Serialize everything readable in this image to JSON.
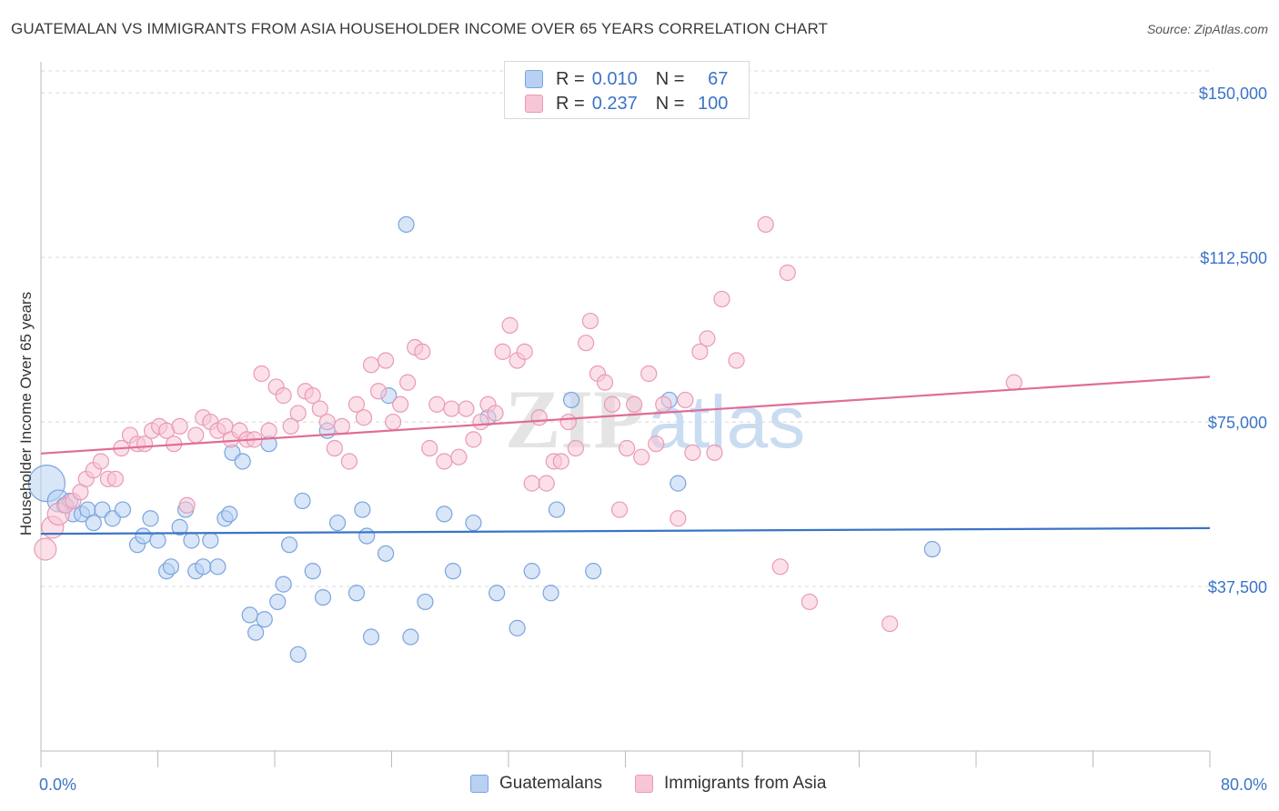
{
  "title": "GUATEMALAN VS IMMIGRANTS FROM ASIA HOUSEHOLDER INCOME OVER 65 YEARS CORRELATION CHART",
  "source": "Source: ZipAtlas.com",
  "watermark": {
    "part1": "ZIP",
    "part2": "atlas"
  },
  "colors": {
    "blue": "#3b74c7",
    "blue_fill": "#b8d1f2",
    "blue_stroke": "#7ba4de",
    "pink": "#e06d96",
    "pink_fill": "#f7c6d6",
    "pink_stroke": "#e99ab5",
    "grid": "#d8d8d8",
    "tick_label": "#3b74c7"
  },
  "legend": {
    "rows": [
      {
        "r_label": "R =",
        "r_value": "0.010",
        "n_label": "N =",
        "n_value": "67"
      },
      {
        "r_label": "R =",
        "r_value": "0.237",
        "n_label": "N =",
        "n_value": "100"
      }
    ]
  },
  "bottom_legend": [
    "Guatemalans",
    "Immigrants from Asia"
  ],
  "chart_data": {
    "type": "scatter",
    "title": "GUATEMALAN VS IMMIGRANTS FROM ASIA HOUSEHOLDER INCOME OVER 65 YEARS CORRELATION CHART",
    "ylabel": "Householder Income Over 65 years",
    "xlabel": "",
    "xlim": [
      0,
      80
    ],
    "ylim": [
      0,
      155000
    ],
    "x_tick_labels": [
      "0.0%",
      "80.0%"
    ],
    "y_ticks": [
      37500,
      75000,
      112500,
      150000
    ],
    "y_tick_labels": [
      "$37,500",
      "$75,000",
      "$112,500",
      "$150,000"
    ],
    "grid": true,
    "legend_position": "top-center",
    "series": [
      {
        "name": "Guatemalans",
        "color": "blue",
        "trend": {
          "x": [
            0,
            80
          ],
          "y": [
            49500,
            50800
          ]
        },
        "points": [
          [
            0.4,
            61000,
            3
          ],
          [
            1.2,
            57000,
            2
          ],
          [
            1.6,
            56000,
            1
          ],
          [
            2.0,
            57000,
            1
          ],
          [
            2.2,
            54000,
            1
          ],
          [
            2.8,
            54000,
            1
          ],
          [
            3.2,
            55000,
            1
          ],
          [
            3.6,
            52000,
            1
          ],
          [
            4.2,
            55000,
            1
          ],
          [
            4.9,
            53000,
            1
          ],
          [
            5.6,
            55000,
            1
          ],
          [
            6.6,
            47000,
            1
          ],
          [
            7.0,
            49000,
            1
          ],
          [
            7.5,
            53000,
            1
          ],
          [
            8.0,
            48000,
            1
          ],
          [
            8.6,
            41000,
            1
          ],
          [
            8.9,
            42000,
            1
          ],
          [
            9.5,
            51000,
            1
          ],
          [
            9.9,
            55000,
            1
          ],
          [
            10.3,
            48000,
            1
          ],
          [
            10.6,
            41000,
            1
          ],
          [
            11.1,
            42000,
            1
          ],
          [
            11.6,
            48000,
            1
          ],
          [
            12.1,
            42000,
            1
          ],
          [
            12.6,
            53000,
            1
          ],
          [
            12.9,
            54000,
            1
          ],
          [
            13.1,
            68000,
            1
          ],
          [
            13.8,
            66000,
            1
          ],
          [
            14.3,
            31000,
            1
          ],
          [
            14.7,
            27000,
            1
          ],
          [
            15.3,
            30000,
            1
          ],
          [
            15.6,
            70000,
            1
          ],
          [
            16.2,
            34000,
            1
          ],
          [
            16.6,
            38000,
            1
          ],
          [
            17.0,
            47000,
            1
          ],
          [
            17.6,
            22000,
            1
          ],
          [
            17.9,
            57000,
            1
          ],
          [
            18.6,
            41000,
            1
          ],
          [
            19.3,
            35000,
            1
          ],
          [
            19.6,
            73000,
            1
          ],
          [
            20.3,
            52000,
            1
          ],
          [
            21.6,
            36000,
            1
          ],
          [
            22.0,
            55000,
            1
          ],
          [
            22.3,
            49000,
            1
          ],
          [
            22.6,
            26000,
            1
          ],
          [
            23.6,
            45000,
            1
          ],
          [
            23.8,
            81000,
            1
          ],
          [
            25.0,
            120000,
            1
          ],
          [
            25.3,
            26000,
            1
          ],
          [
            26.3,
            34000,
            1
          ],
          [
            27.6,
            54000,
            1
          ],
          [
            28.2,
            41000,
            1
          ],
          [
            29.6,
            52000,
            1
          ],
          [
            30.6,
            76000,
            1
          ],
          [
            31.2,
            36000,
            1
          ],
          [
            32.6,
            28000,
            1
          ],
          [
            33.6,
            41000,
            1
          ],
          [
            34.9,
            36000,
            1
          ],
          [
            35.3,
            55000,
            1
          ],
          [
            36.3,
            80000,
            1
          ],
          [
            37.8,
            41000,
            1
          ],
          [
            43.0,
            80000,
            1
          ],
          [
            43.6,
            61000,
            1
          ],
          [
            61.0,
            46000,
            1
          ]
        ]
      },
      {
        "name": "Immigrants from Asia",
        "color": "pink",
        "trend": {
          "x": [
            0,
            80
          ],
          "y": [
            67800,
            85300
          ]
        },
        "points": [
          [
            0.3,
            46000,
            2
          ],
          [
            0.8,
            51000,
            2
          ],
          [
            1.2,
            54000,
            2
          ],
          [
            1.7,
            56000,
            1
          ],
          [
            2.2,
            57000,
            1
          ],
          [
            2.7,
            59000,
            1
          ],
          [
            3.1,
            62000,
            1
          ],
          [
            3.6,
            64000,
            1
          ],
          [
            4.1,
            66000,
            1
          ],
          [
            4.6,
            62000,
            1
          ],
          [
            5.1,
            62000,
            1
          ],
          [
            5.5,
            69000,
            1
          ],
          [
            6.1,
            72000,
            1
          ],
          [
            6.6,
            70000,
            1
          ],
          [
            7.1,
            70000,
            1
          ],
          [
            7.6,
            73000,
            1
          ],
          [
            8.1,
            74000,
            1
          ],
          [
            8.6,
            73000,
            1
          ],
          [
            9.1,
            70000,
            1
          ],
          [
            9.5,
            74000,
            1
          ],
          [
            10.0,
            56000,
            1
          ],
          [
            10.6,
            72000,
            1
          ],
          [
            11.1,
            76000,
            1
          ],
          [
            11.6,
            75000,
            1
          ],
          [
            12.1,
            73000,
            1
          ],
          [
            12.6,
            74000,
            1
          ],
          [
            13.0,
            71000,
            1
          ],
          [
            13.6,
            73000,
            1
          ],
          [
            14.1,
            71000,
            1
          ],
          [
            14.6,
            71000,
            1
          ],
          [
            15.1,
            86000,
            1
          ],
          [
            15.6,
            73000,
            1
          ],
          [
            16.1,
            83000,
            1
          ],
          [
            16.6,
            81000,
            1
          ],
          [
            17.1,
            74000,
            1
          ],
          [
            17.6,
            77000,
            1
          ],
          [
            18.1,
            82000,
            1
          ],
          [
            18.6,
            81000,
            1
          ],
          [
            19.1,
            78000,
            1
          ],
          [
            19.6,
            75000,
            1
          ],
          [
            20.1,
            69000,
            1
          ],
          [
            20.6,
            74000,
            1
          ],
          [
            21.1,
            66000,
            1
          ],
          [
            21.6,
            79000,
            1
          ],
          [
            22.1,
            76000,
            1
          ],
          [
            22.6,
            88000,
            1
          ],
          [
            23.1,
            82000,
            1
          ],
          [
            23.6,
            89000,
            1
          ],
          [
            24.1,
            75000,
            1
          ],
          [
            24.6,
            79000,
            1
          ],
          [
            25.1,
            84000,
            1
          ],
          [
            25.6,
            92000,
            1
          ],
          [
            26.1,
            91000,
            1
          ],
          [
            26.6,
            69000,
            1
          ],
          [
            27.1,
            79000,
            1
          ],
          [
            27.6,
            66000,
            1
          ],
          [
            28.1,
            78000,
            1
          ],
          [
            28.6,
            67000,
            1
          ],
          [
            29.1,
            78000,
            1
          ],
          [
            29.6,
            71000,
            1
          ],
          [
            30.1,
            75000,
            1
          ],
          [
            30.6,
            79000,
            1
          ],
          [
            31.1,
            77000,
            1
          ],
          [
            31.6,
            91000,
            1
          ],
          [
            32.1,
            97000,
            1
          ],
          [
            32.6,
            89000,
            1
          ],
          [
            33.1,
            91000,
            1
          ],
          [
            33.6,
            61000,
            1
          ],
          [
            34.1,
            76000,
            1
          ],
          [
            34.6,
            61000,
            1
          ],
          [
            35.1,
            66000,
            1
          ],
          [
            35.6,
            66000,
            1
          ],
          [
            36.1,
            75000,
            1
          ],
          [
            36.6,
            69000,
            1
          ],
          [
            37.3,
            93000,
            1
          ],
          [
            37.6,
            98000,
            1
          ],
          [
            38.1,
            86000,
            1
          ],
          [
            38.6,
            84000,
            1
          ],
          [
            39.1,
            79000,
            1
          ],
          [
            39.6,
            55000,
            1
          ],
          [
            40.1,
            69000,
            1
          ],
          [
            40.6,
            79000,
            1
          ],
          [
            41.1,
            67000,
            1
          ],
          [
            41.6,
            86000,
            1
          ],
          [
            42.1,
            70000,
            1
          ],
          [
            42.6,
            79000,
            1
          ],
          [
            43.6,
            53000,
            1
          ],
          [
            44.1,
            80000,
            1
          ],
          [
            44.6,
            68000,
            1
          ],
          [
            45.1,
            91000,
            1
          ],
          [
            45.6,
            94000,
            1
          ],
          [
            46.1,
            68000,
            1
          ],
          [
            46.6,
            103000,
            1
          ],
          [
            47.6,
            89000,
            1
          ],
          [
            49.6,
            120000,
            1
          ],
          [
            51.1,
            109000,
            1
          ],
          [
            50.6,
            42000,
            1
          ],
          [
            52.6,
            34000,
            1
          ],
          [
            58.1,
            29000,
            1
          ],
          [
            66.6,
            84000,
            1
          ]
        ]
      }
    ]
  }
}
